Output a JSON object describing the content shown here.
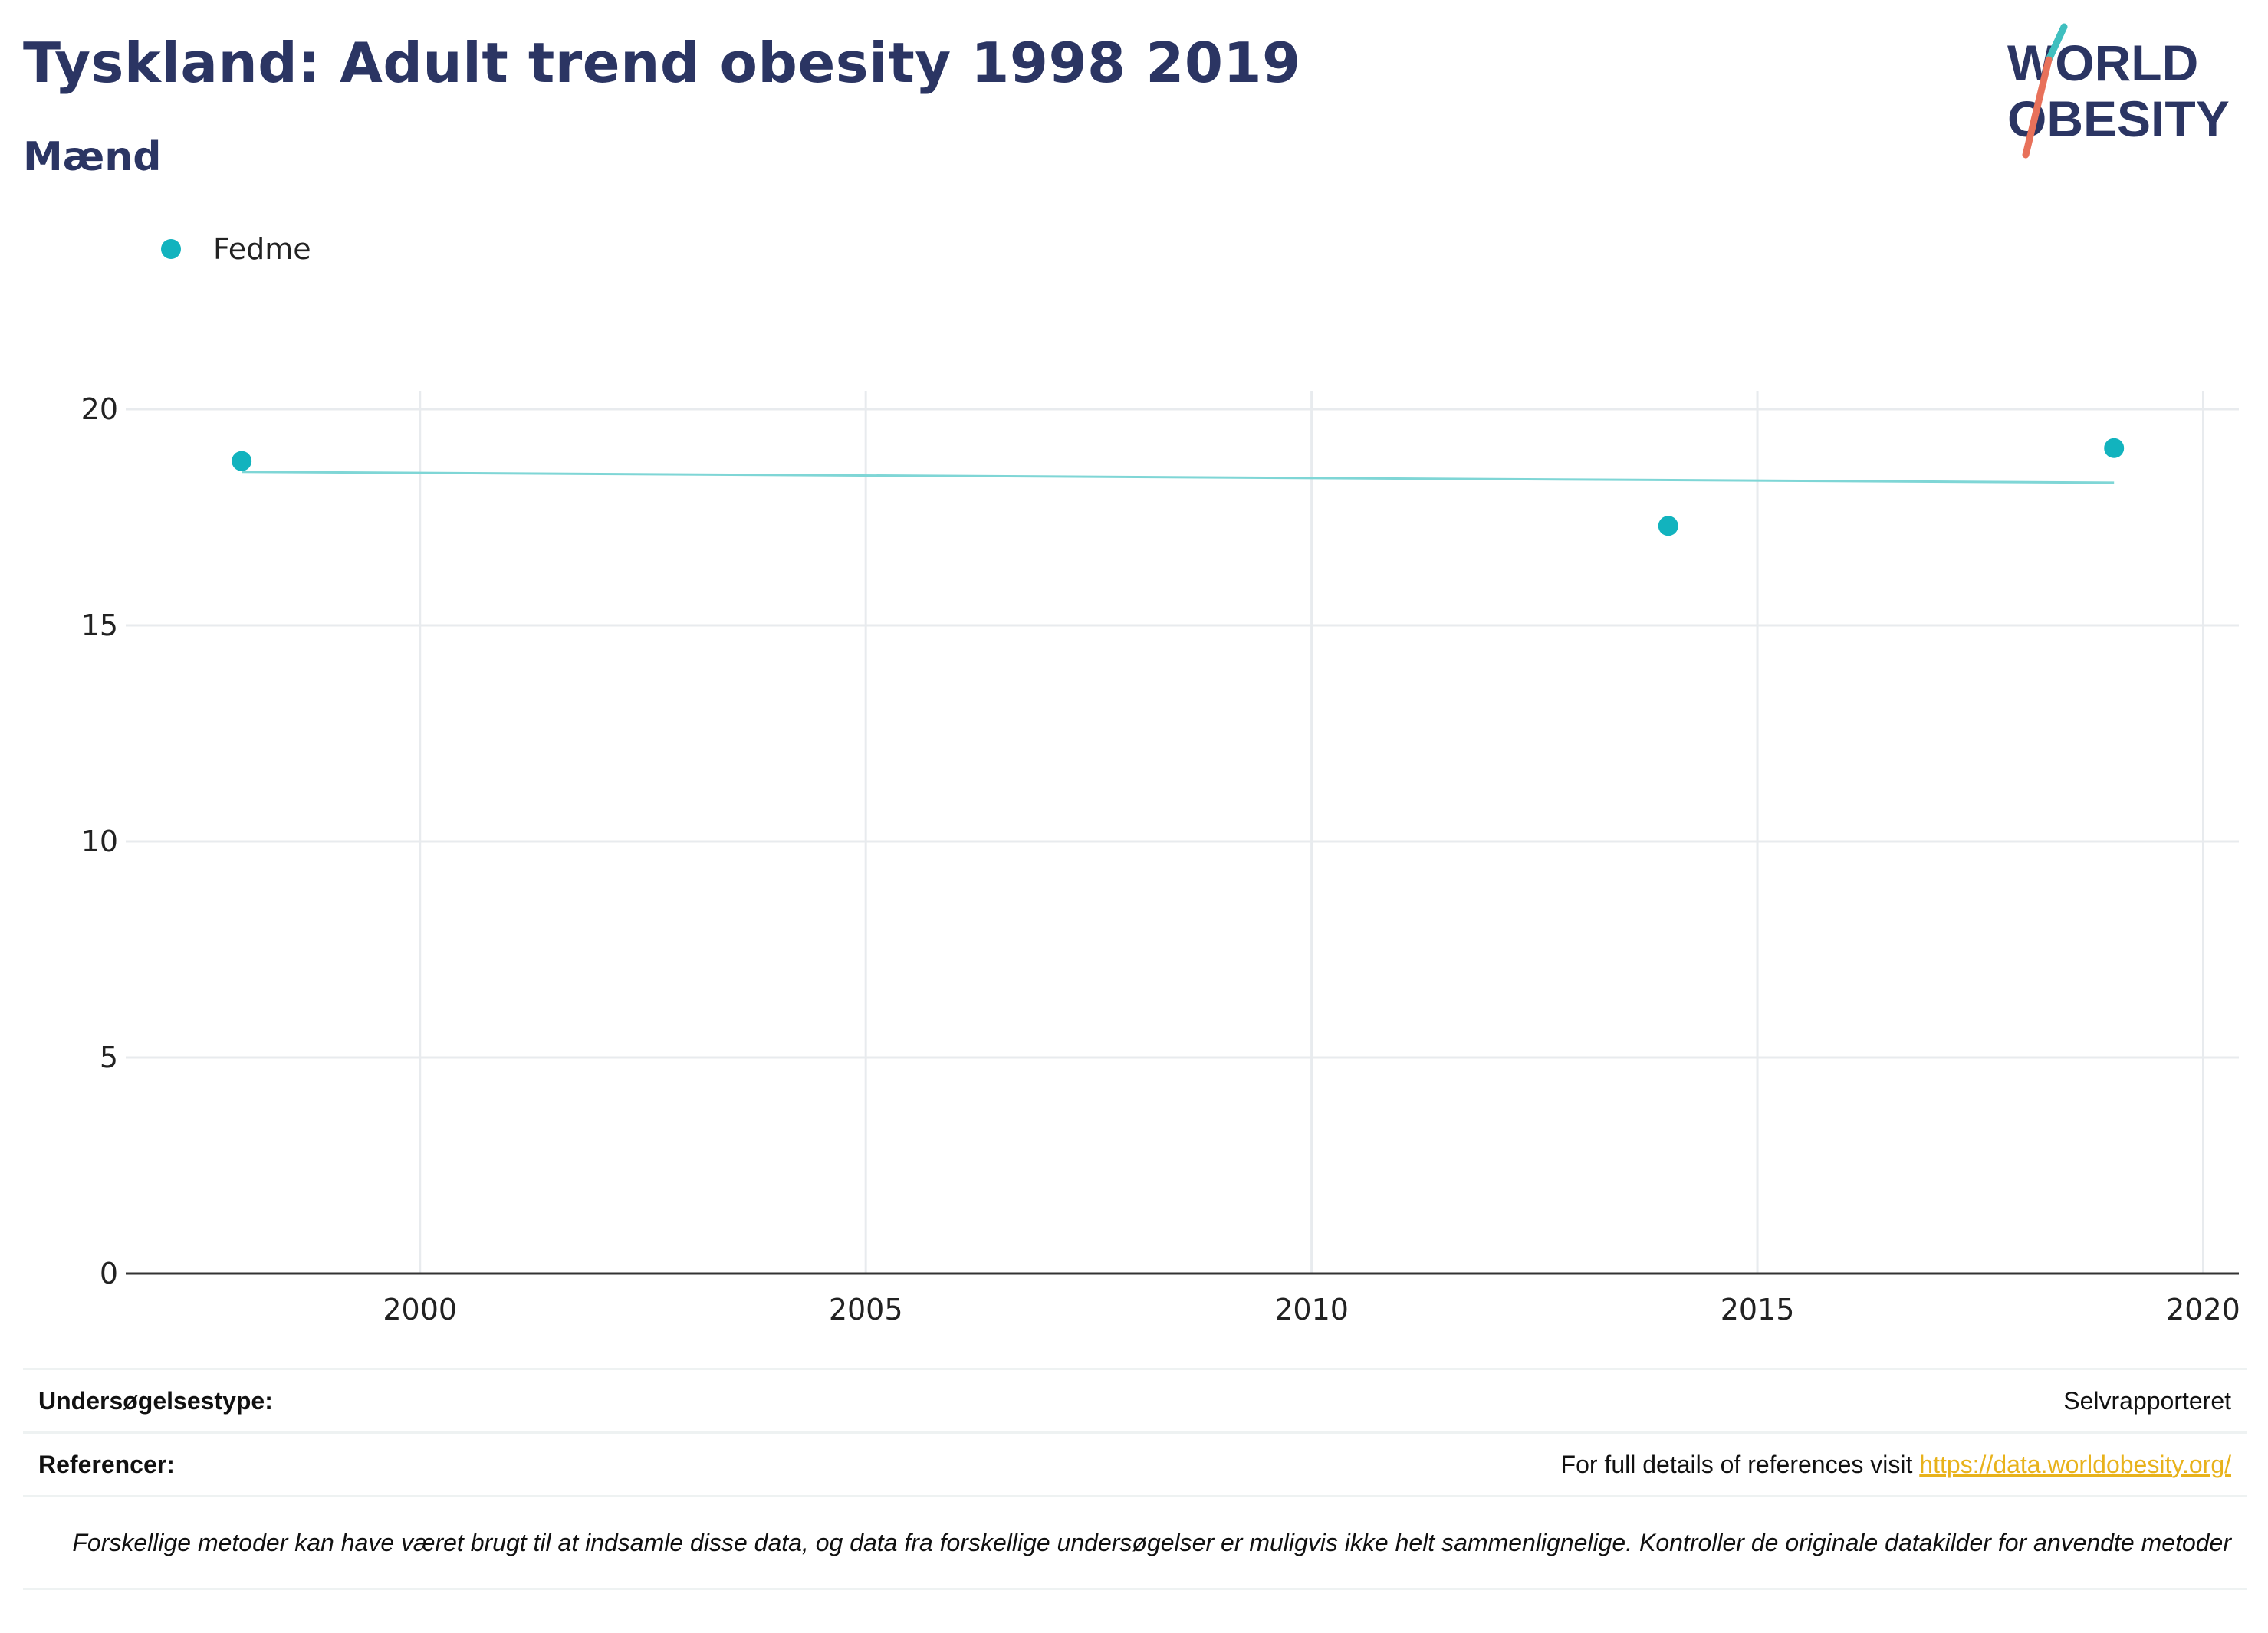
{
  "header": {
    "title": "Tyskland: Adult trend obesity 1998 2019",
    "subtitle": "Mænd"
  },
  "logo": {
    "line1": "WORLD",
    "line2": "OBESITY",
    "colors": {
      "text": "#2b3563",
      "slash_top": "#3fbfbf",
      "slash_bottom": "#e8715a"
    }
  },
  "legend": {
    "label": "Fedme"
  },
  "colors": {
    "marker": "#12b3be",
    "trend": "#7fd6d6",
    "grid": "#e8ebee",
    "axis": "#333333"
  },
  "chart_data": {
    "type": "scatter",
    "series": [
      {
        "name": "Fedme",
        "x": [
          1998,
          2014,
          2019
        ],
        "y": [
          18.8,
          17.3,
          19.1
        ]
      }
    ],
    "trendline": {
      "x": [
        1998,
        2019
      ],
      "y": [
        18.55,
        18.3
      ]
    },
    "xlim": [
      1996.7,
      2020.4
    ],
    "ylim": [
      0,
      20
    ],
    "xticks": [
      2000,
      2005,
      2010,
      2015,
      2020
    ],
    "yticks": [
      0,
      5,
      10,
      15,
      20
    ],
    "grid": true,
    "legend_position": "top-left"
  },
  "footer": {
    "survey_type_label": "Undersøgelsestype:",
    "survey_type_value": "Selvrapporteret",
    "references_label": "Referencer:",
    "references_text": "For full details of references visit ",
    "references_link": "https://data.worldobesity.org/",
    "note": "Forskellige metoder kan have været brugt til at indsamle disse data, og data fra forskellige undersøgelser er muligvis ikke helt sammenlignelige. Kontroller de originale datakilder for anvendte metoder"
  }
}
